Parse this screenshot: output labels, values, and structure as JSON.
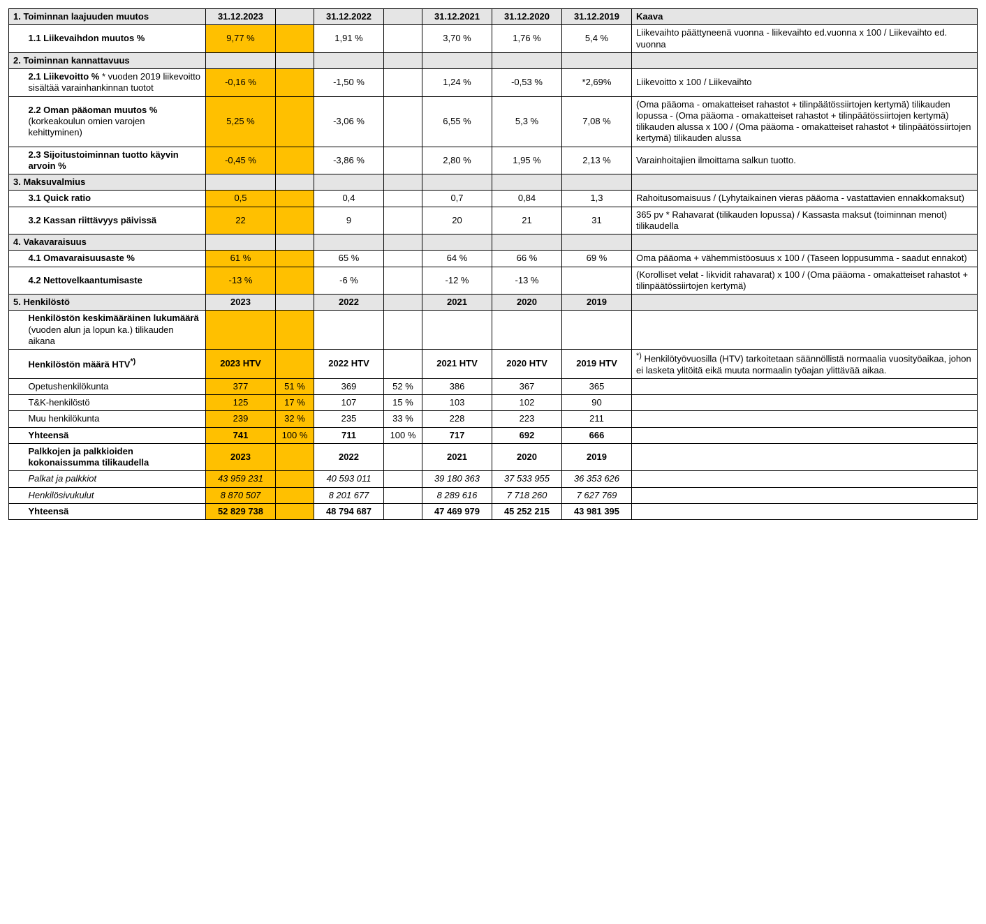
{
  "header": {
    "section1": "1. Toiminnan laajuuden muutos",
    "y23": "31.12.2023",
    "y22": "31.12.2022",
    "y21": "31.12.2021",
    "y20": "31.12.2020",
    "y19": "31.12.2019",
    "kaava": "Kaava"
  },
  "r1_1": {
    "label_b": "1.1 Liikevaihdon muutos %",
    "y23": "9,77 %",
    "y22": "1,91 %",
    "y21": "3,70 %",
    "y20": "1,76 %",
    "y19": "5,4 %",
    "kaava": "Liikevaihto päättyneenä vuonna - liikevaihto ed.vuonna x 100 / Liikevaihto ed. vuonna"
  },
  "s2": {
    "title": "2. Toiminnan kannattavuus"
  },
  "r2_1": {
    "label_b": "2.1 Liikevoitto %",
    "label_rest": " * vuoden 2019 liikevoitto sisältää varainhankinnan tuotot",
    "y23": "-0,16 %",
    "y22": "-1,50 %",
    "y21": "1,24 %",
    "y20": "-0,53 %",
    "y19": "*2,69%",
    "kaava": "Liikevoitto x 100 / Liikevaihto"
  },
  "r2_2": {
    "label_b": "2.2 Oman pääoman muutos %",
    "label_rest": " (korkeakoulun omien varojen kehittyminen)",
    "y23": "5,25 %",
    "y22": "-3,06 %",
    "y21": "6,55 %",
    "y20": "5,3 %",
    "y19": "7,08 %",
    "kaava": "(Oma pääoma - omakatteiset rahastot + tilinpäätössiirtojen kertymä) tilikauden lopussa - (Oma pääoma - omakatteiset rahastot + tilinpäätössiirtojen kertymä) tilikauden alussa x 100 / (Oma pääoma - omakatteiset rahastot + tilinpäätössiirtojen kertymä) tilikauden alussa"
  },
  "r2_3": {
    "label_b": "2.3 Sijoitustoiminnan tuotto käyvin arvoin %",
    "y23": "-0,45 %",
    "y22": "-3,86 %",
    "y21": "2,80 %",
    "y20": "1,95 %",
    "y19": "2,13 %",
    "kaava": "Varainhoitajien ilmoittama salkun tuotto."
  },
  "s3": {
    "title": "3. Maksuvalmius"
  },
  "r3_1": {
    "label_b": "3.1 Quick ratio",
    "y23": "0,5",
    "y22": "0,4",
    "y21": "0,7",
    "y20": "0,84",
    "y19": "1,3",
    "kaava": "Rahoitusomaisuus / (Lyhytaikainen vieras pääoma - vastattavien ennakkomaksut)"
  },
  "r3_2": {
    "label_b": "3.2 Kassan riittävyys päivissä",
    "y23": "22",
    "y22": "9",
    "y21": "20",
    "y20": "21",
    "y19": "31",
    "kaava": "365 pv * Rahavarat (tilikauden lopussa) / Kassasta maksut (toiminnan menot) tilikaudella"
  },
  "s4": {
    "title": "4. Vakavaraisuus"
  },
  "r4_1": {
    "label_b": "4.1 Omavaraisuusaste %",
    "y23": "61 %",
    "y22": "65 %",
    "y21": "64 %",
    "y20": "66 %",
    "y19": "69 %",
    "kaava": "Oma pääoma + vähemmistöosuus x 100 / (Taseen loppusumma - saadut ennakot)"
  },
  "r4_2": {
    "label_b": "4.2 Nettovelkaantumisaste",
    "y23": "-13 %",
    "y22": "-6 %",
    "y21": "-12 %",
    "y20": "-13 %",
    "y19": "",
    "kaava": "(Korolliset velat - likvidit rahavarat) x 100 / (Oma pääoma - omakatteiset rahastot + tilinpäätössiirtojen kertymä)"
  },
  "s5": {
    "title": "5. Henkilöstö",
    "y23": "2023",
    "y22": "2022",
    "y21": "2021",
    "y20": "2020",
    "y19": "2019"
  },
  "r5_a": {
    "label_b": "Henkilöstön keskimääräinen lukumäärä",
    "label_rest": " (vuoden alun ja lopun ka.) tilikauden aikana"
  },
  "r5_b": {
    "label_b": "Henkilöstön määrä HTV",
    "sup": "*)",
    "y23": "2023 HTV",
    "y22": "2022 HTV",
    "y21": "2021 HTV",
    "y20": "2020 HTV",
    "y19": "2019 HTV",
    "kaava_sup": "*)",
    "kaava": " Henkilötyövuosilla (HTV) tarkoitetaan säännöllistä normaalia vuosityöaikaa, johon ei lasketa ylitöitä eikä muuta normaalin työajan ylittävää aikaa."
  },
  "r5_c1": {
    "label": "Opetushenkilökunta",
    "y23": "377",
    "y23p": "51 %",
    "y22": "369",
    "y22p": "52 %",
    "y21": "386",
    "y20": "367",
    "y19": "365"
  },
  "r5_c2": {
    "label": "T&K-henkilöstö",
    "y23": "125",
    "y23p": "17 %",
    "y22": "107",
    "y22p": "15 %",
    "y21": "103",
    "y20": "102",
    "y19": "90"
  },
  "r5_c3": {
    "label": "Muu henkilökunta",
    "y23": "239",
    "y23p": "32 %",
    "y22": "235",
    "y22p": "33 %",
    "y21": "228",
    "y20": "223",
    "y19": "211"
  },
  "r5_tot": {
    "label": "Yhteensä",
    "y23": "741",
    "y23p": "100 %",
    "y22": "711",
    "y22p": "100 %",
    "y21": "717",
    "y20": "692",
    "y19": "666"
  },
  "r5_pay_hdr": {
    "label": "Palkkojen ja palkkioiden kokonaissumma tilikaudella",
    "y23": "2023",
    "y22": "2022",
    "y21": "2021",
    "y20": "2020",
    "y19": "2019"
  },
  "r5_p1": {
    "label": "Palkat ja palkkiot",
    "y23": "43 959 231",
    "y22": "40 593 011",
    "y21": "39 180 363",
    "y20": "37 533 955",
    "y19": "36 353 626"
  },
  "r5_p2": {
    "label": "Henkilösivukulut",
    "y23": "8 870 507",
    "y22": "8 201 677",
    "y21": "8 289 616",
    "y20": "7 718 260",
    "y19": "7 627 769"
  },
  "r5_ptot": {
    "label": "Yhteensä",
    "y23": "52 829 738",
    "y22": "48 794 687",
    "y21": "47 469 979",
    "y20": "45 252 215",
    "y19": "43 981 395"
  }
}
